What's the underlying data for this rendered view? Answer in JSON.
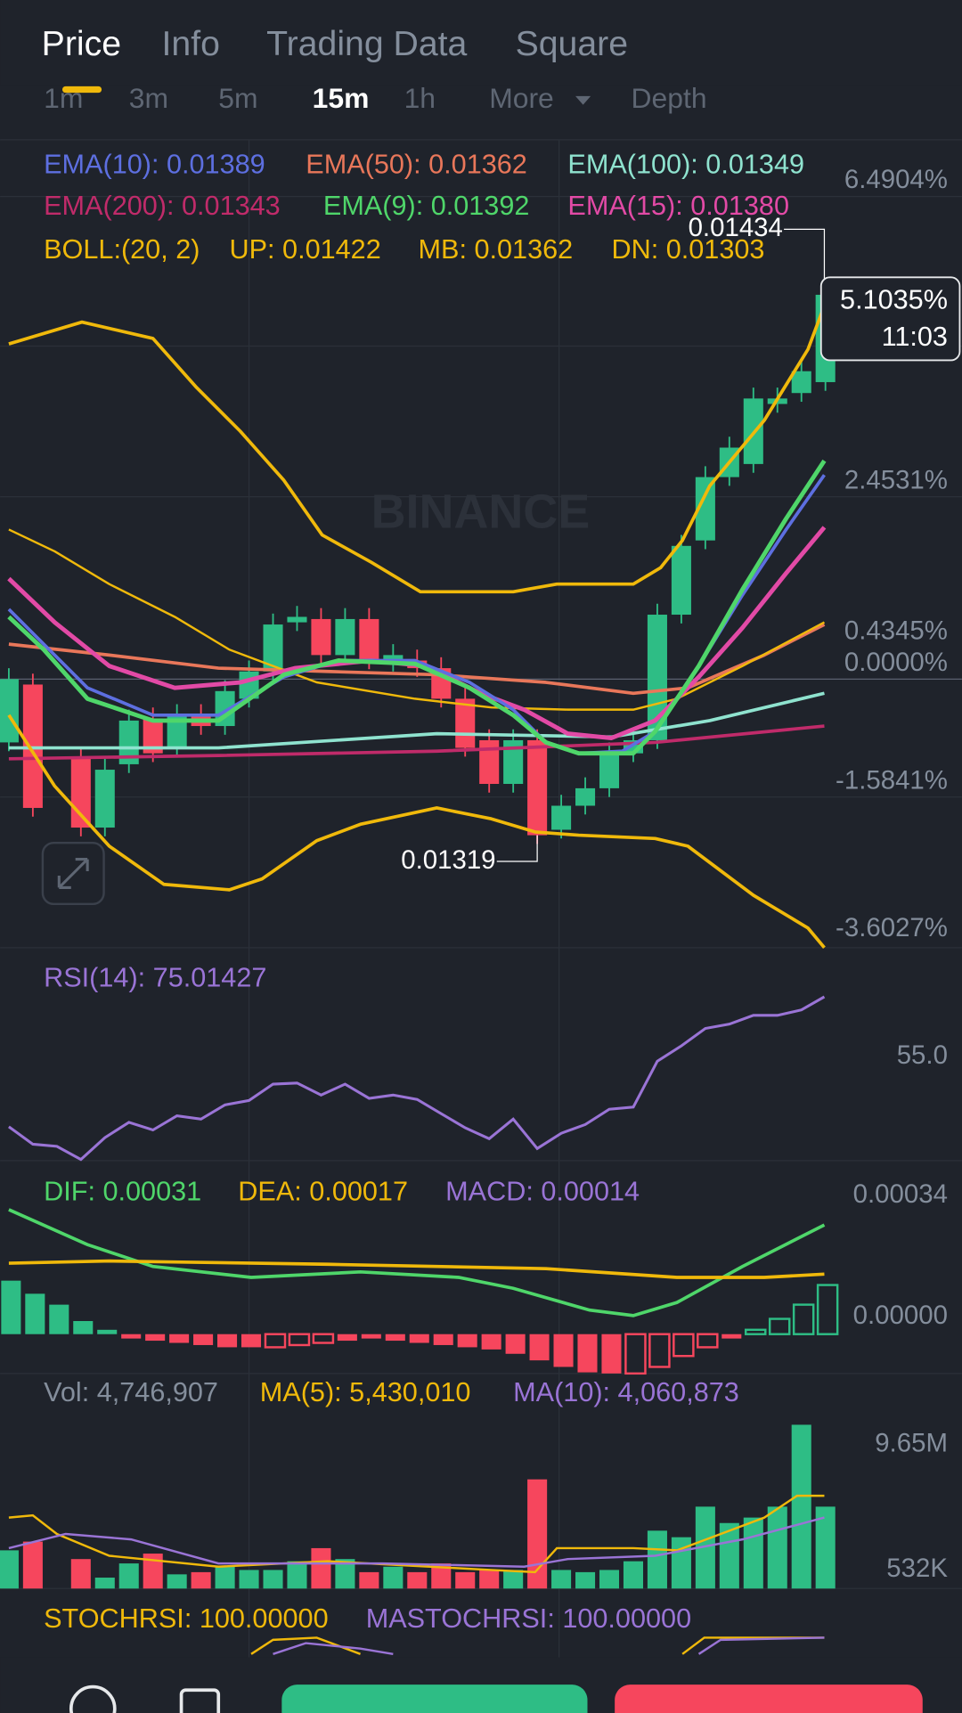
{
  "tabs": [
    "Price",
    "Info",
    "Trading Data",
    "Square"
  ],
  "intervals": [
    "1m",
    "3m",
    "5m",
    "15m",
    "1h",
    "More",
    "Depth"
  ],
  "price_chart": {
    "indicators": [
      {
        "text": "EMA(10): 0.01389",
        "color": "#5d6fe0"
      },
      {
        "text": "EMA(50): 0.01362",
        "color": "#e9775a"
      },
      {
        "text": "EMA(100): 0.01349",
        "color": "#8fe3cf"
      },
      {
        "text": "EMA(200): 0.01343",
        "color": "#c02b6a"
      },
      {
        "text": "EMA(9): 0.01392",
        "color": "#4fd66a"
      },
      {
        "text": "EMA(15): 0.01380",
        "color": "#e24aa6"
      },
      {
        "text": "BOLL:(20, 2)",
        "color": "#f0b90b"
      },
      {
        "text": "UP: 0.01422",
        "color": "#f0b90b"
      },
      {
        "text": "MB: 0.01362",
        "color": "#f0b90b"
      },
      {
        "text": "DN: 0.01303",
        "color": "#f0b90b"
      }
    ],
    "axis_labels": [
      "6.4904%",
      "2.4531%",
      "0.4345%",
      "0.0000%",
      "-1.5841%",
      "-3.6027%"
    ],
    "high": "0.01434",
    "low": "0.01319",
    "last_change": "5.1035%",
    "countdown": "11:03",
    "watermark": "BINANCE"
  },
  "rsi": {
    "indicators": [
      {
        "text": "RSI(14): 75.01427",
        "color": "#9a74d6"
      }
    ],
    "axis_labels": [
      "55.0"
    ]
  },
  "macd": {
    "indicators": [
      {
        "text": "DIF: 0.00031",
        "color": "#4fd66a"
      },
      {
        "text": "DEA: 0.00017",
        "color": "#f0b90b"
      },
      {
        "text": "MACD: 0.00014",
        "color": "#9a74d6"
      }
    ],
    "axis_labels": [
      "0.00034",
      "0.00000"
    ]
  },
  "volume": {
    "indicators": [
      {
        "text": "Vol: 4,746,907",
        "color": "#848e9c"
      },
      {
        "text": "MA(5): 5,430,010",
        "color": "#f0b90b"
      },
      {
        "text": "MA(10): 4,060,873",
        "color": "#9a74d6"
      }
    ],
    "axis_labels": [
      "9.65M",
      "532K"
    ]
  },
  "stochrsi": {
    "indicators": [
      {
        "text": "STOCHRSI: 100.00000",
        "color": "#f0b90b"
      },
      {
        "text": "MASTOCHRSI: 100.00000",
        "color": "#9a74d6"
      }
    ]
  }
}
